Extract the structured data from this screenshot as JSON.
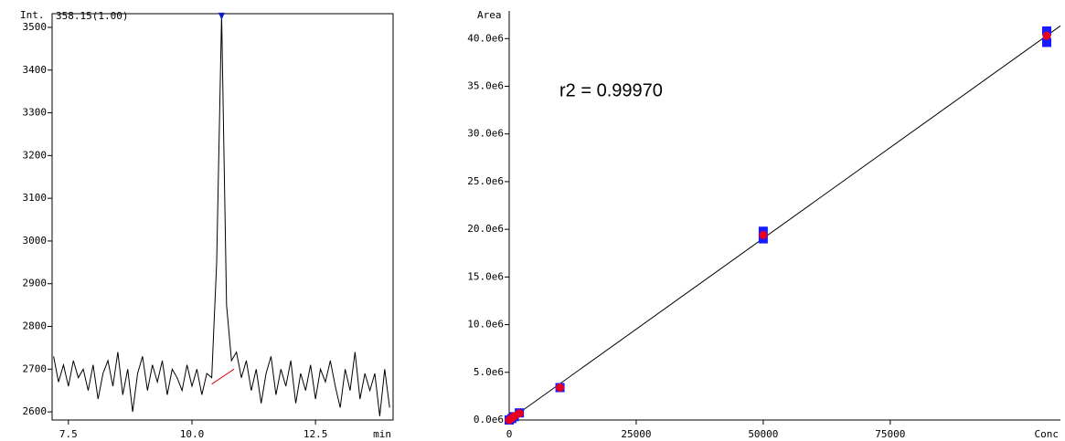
{
  "chart_data": [
    {
      "type": "line",
      "annotation": "358.15(1.00)",
      "y_label": "Int.",
      "x_label": "min",
      "xlim": [
        7.17,
        14.07
      ],
      "ylim": [
        2581,
        3532
      ],
      "xticks": [
        7.5,
        {
          "value": 10,
          "label": "10.0"
        },
        12.5
      ],
      "yticks": [
        2600,
        2700,
        2800,
        2900,
        3000,
        3100,
        3200,
        3300,
        3400,
        3500
      ],
      "series": [
        {
          "color": "#000000",
          "x": [
            7.2,
            7.3,
            7.4,
            7.5,
            7.6,
            7.7,
            7.8,
            7.9,
            8.0,
            8.1,
            8.2,
            8.3,
            8.4,
            8.5,
            8.6,
            8.7,
            8.8,
            8.9,
            9.0,
            9.1,
            9.2,
            9.3,
            9.4,
            9.5,
            9.6,
            9.7,
            9.8,
            9.9,
            10.0,
            10.1,
            10.2,
            10.3,
            10.4,
            10.5,
            10.6,
            10.7,
            10.8,
            10.9,
            11.0,
            11.1,
            11.2,
            11.3,
            11.4,
            11.5,
            11.6,
            11.7,
            11.8,
            11.9,
            12.0,
            12.1,
            12.2,
            12.3,
            12.4,
            12.5,
            12.6,
            12.7,
            12.8,
            12.9,
            13.0,
            13.1,
            13.2,
            13.3,
            13.4,
            13.5,
            13.6,
            13.7,
            13.8,
            13.9,
            14.0
          ],
          "values": [
            2730,
            2670,
            2710,
            2660,
            2720,
            2680,
            2700,
            2650,
            2710,
            2630,
            2690,
            2720,
            2660,
            2740,
            2640,
            2700,
            2600,
            2690,
            2730,
            2650,
            2710,
            2670,
            2720,
            2640,
            2700,
            2680,
            2650,
            2710,
            2660,
            2700,
            2640,
            2690,
            2680,
            2950,
            3530,
            2850,
            2720,
            2740,
            2680,
            2720,
            2650,
            2700,
            2620,
            2690,
            2730,
            2640,
            2700,
            2660,
            2720,
            2620,
            2690,
            2650,
            2710,
            2630,
            2700,
            2670,
            2720,
            2660,
            2610,
            2700,
            2650,
            2740,
            2630,
            2690,
            2650,
            2690,
            2590,
            2700,
            2610
          ]
        }
      ],
      "baseline": {
        "color": "#e00000",
        "x": [
          10.4,
          10.85
        ],
        "values": [
          2665,
          2700
        ]
      },
      "peak_color": "#1020c0"
    },
    {
      "type": "scatter",
      "annotation": "r2 = 0.99970",
      "y_label": "Area",
      "x_label": "Conc",
      "xlim": [
        0,
        108500
      ],
      "ylim": [
        0,
        42900000
      ],
      "xticks": [
        0,
        25000,
        50000,
        75000
      ],
      "yticks": [
        {
          "value": 0,
          "label": "0.0e6"
        },
        {
          "value": 5000000,
          "label": "5.0e6"
        },
        {
          "value": 10000000,
          "label": "10.0e6"
        },
        {
          "value": 15000000,
          "label": "15.0e6"
        },
        {
          "value": 20000000,
          "label": "20.0e6"
        },
        {
          "value": 25000000,
          "label": "25.0e6"
        },
        {
          "value": 30000000,
          "label": "30.0e6"
        },
        {
          "value": 35000000,
          "label": "35.0e6"
        },
        {
          "value": 40000000,
          "label": "40.0e6"
        }
      ],
      "series": [
        {
          "color": "#1a1aff",
          "marker": "square",
          "x": [
            0,
            500,
            1000,
            2000,
            10000,
            50000,
            50000,
            105800,
            105800
          ],
          "values": [
            0,
            150000,
            350000,
            750000,
            3400000,
            19800000,
            19000000,
            40800000,
            39600000
          ]
        },
        {
          "color": "#e8001c",
          "marker": "circle",
          "x": [
            0,
            500,
            1000,
            2000,
            10000,
            50000,
            105800
          ],
          "values": [
            0,
            200000,
            400000,
            700000,
            3400000,
            19400000,
            40300000
          ]
        }
      ],
      "fit_line": {
        "color": "#000000",
        "x": [
          0,
          108500
        ],
        "values": [
          0,
          41340000
        ]
      }
    }
  ]
}
